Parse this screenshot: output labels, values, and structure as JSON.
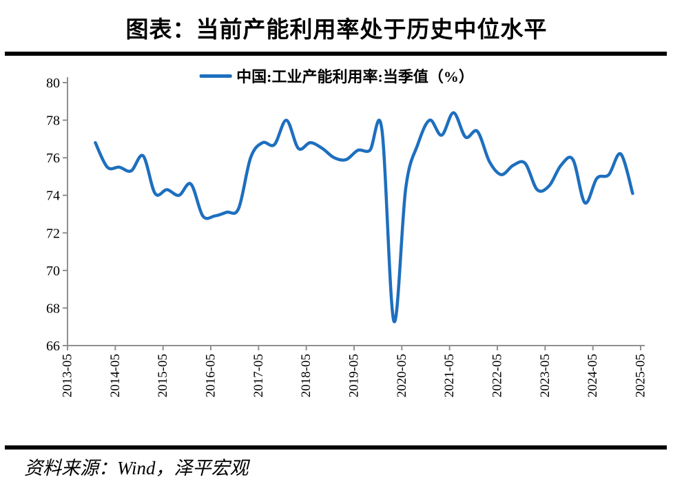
{
  "title": "图表：当前产能利用率处于历史中位水平",
  "legend": {
    "label": "中国:工业产能利用率:当季值（%）"
  },
  "source": "资料来源：Wind，泽平宏观",
  "colors": {
    "line": "#1E6FBE",
    "axis": "#8F8F8F",
    "divider": "#000000",
    "text": "#000000"
  },
  "chart_data": {
    "type": "line",
    "title": "图表：当前产能利用率处于历史中位水平",
    "series_name": "中国:工业产能利用率:当季值（%）",
    "x": [
      "2013-12",
      "2014-03",
      "2014-06",
      "2014-09",
      "2014-12",
      "2015-03",
      "2015-06",
      "2015-09",
      "2015-12",
      "2016-03",
      "2016-06",
      "2016-09",
      "2016-12",
      "2017-03",
      "2017-06",
      "2017-09",
      "2017-12",
      "2018-03",
      "2018-06",
      "2018-09",
      "2018-12",
      "2019-03",
      "2019-06",
      "2019-09",
      "2019-12",
      "2020-03",
      "2020-06",
      "2020-09",
      "2020-12",
      "2021-03",
      "2021-06",
      "2021-09",
      "2021-12",
      "2022-03",
      "2022-06",
      "2022-09",
      "2022-12",
      "2023-03",
      "2023-06",
      "2023-09",
      "2023-12",
      "2024-03",
      "2024-06",
      "2024-09",
      "2024-12",
      "2025-03"
    ],
    "values": [
      76.8,
      75.5,
      75.5,
      75.3,
      76.1,
      74.1,
      74.3,
      74.0,
      74.6,
      72.9,
      72.9,
      73.1,
      73.3,
      76.0,
      76.8,
      76.7,
      78.0,
      76.5,
      76.8,
      76.5,
      76.0,
      75.9,
      76.4,
      76.4,
      77.5,
      67.3,
      74.4,
      76.7,
      78.0,
      77.2,
      78.4,
      77.1,
      77.4,
      75.8,
      75.1,
      75.6,
      75.7,
      74.3,
      74.5,
      75.6,
      75.9,
      73.6,
      74.9,
      75.1,
      76.2,
      74.1
    ],
    "xticks": [
      "2013-05",
      "2014-05",
      "2015-05",
      "2016-05",
      "2017-05",
      "2018-05",
      "2019-05",
      "2020-05",
      "2021-05",
      "2022-05",
      "2023-05",
      "2024-05",
      "2025-05"
    ],
    "yticks": [
      80,
      78,
      76,
      74,
      72,
      70,
      68,
      66
    ],
    "ylim": [
      66,
      80
    ],
    "xlim": [
      "2013-05",
      "2025-05"
    ],
    "grid": false,
    "legend_position": "top-center",
    "line_smoothing": "spline"
  }
}
